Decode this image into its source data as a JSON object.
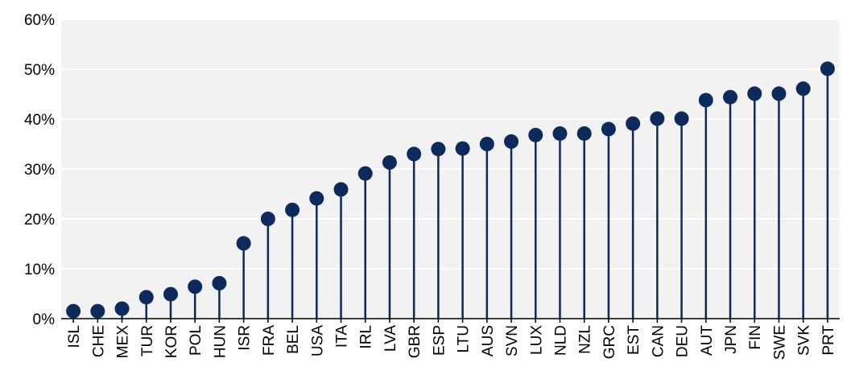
{
  "chart_data": {
    "type": "lollipop",
    "title": "",
    "xlabel": "",
    "ylabel": "",
    "ylim": [
      0,
      60
    ],
    "yticks": [
      0,
      10,
      20,
      30,
      40,
      50,
      60
    ],
    "ytick_labels": [
      "0%",
      "10%",
      "20%",
      "30%",
      "40%",
      "50%",
      "60%"
    ],
    "grid": "horizontal",
    "categories": [
      "ISL",
      "CHE",
      "MEX",
      "TUR",
      "KOR",
      "POL",
      "HUN",
      "ISR",
      "FRA",
      "BEL",
      "USA",
      "ITA",
      "IRL",
      "LVA",
      "GBR",
      "ESP",
      "LTU",
      "AUS",
      "SVN",
      "LUX",
      "NLD",
      "NZL",
      "GRC",
      "EST",
      "CAN",
      "DEU",
      "AUT",
      "JPN",
      "FIN",
      "SWE",
      "SVK",
      "PRT"
    ],
    "values": [
      1.5,
      1.5,
      2.0,
      4.3,
      4.9,
      6.4,
      7.1,
      15.1,
      20.0,
      21.8,
      24.1,
      25.9,
      29.1,
      31.3,
      33.0,
      34.0,
      34.1,
      35.0,
      35.5,
      36.8,
      37.1,
      37.1,
      38.0,
      39.1,
      40.1,
      40.1,
      43.8,
      44.4,
      45.1,
      45.1,
      46.1,
      50.1
    ],
    "colors": {
      "marker": "#0d2a5c",
      "stem": "#0d2a5c",
      "plot_background": "#f2f2f2",
      "gridline": "#ffffff"
    }
  }
}
